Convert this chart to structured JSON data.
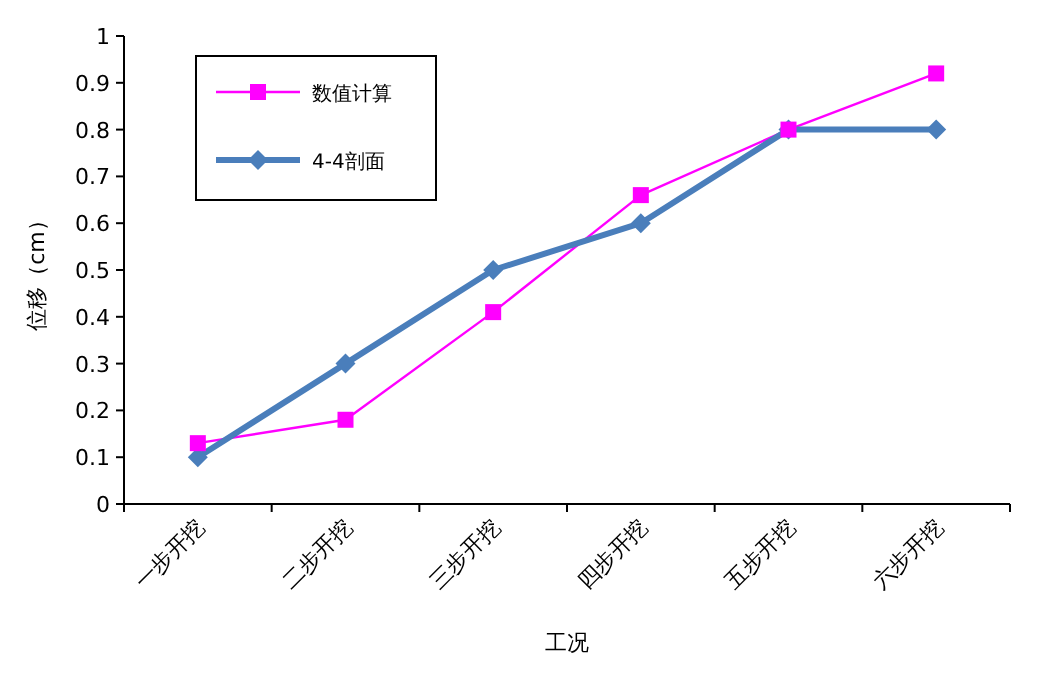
{
  "chart_data": {
    "type": "line",
    "xlabel": "工况",
    "ylabel": "位移（cm）",
    "categories": [
      "一步开挖",
      "二步开挖",
      "三步开挖",
      "四步开挖",
      "五步开挖",
      "六步开挖"
    ],
    "series": [
      {
        "name": "数值计算",
        "color": "#ff00ff",
        "marker": "square",
        "values": [
          0.13,
          0.18,
          0.41,
          0.66,
          0.8,
          0.92
        ]
      },
      {
        "name": "4-4剖面",
        "color": "#4a7ebb",
        "marker": "diamond",
        "values": [
          0.1,
          0.3,
          0.5,
          0.6,
          0.8,
          0.8
        ]
      }
    ],
    "ylim": [
      0,
      1
    ],
    "yticks": [
      0,
      0.1,
      0.2,
      0.3,
      0.4,
      0.5,
      0.6,
      0.7,
      0.8,
      0.9,
      1
    ],
    "grid": false,
    "legend": "top left"
  }
}
